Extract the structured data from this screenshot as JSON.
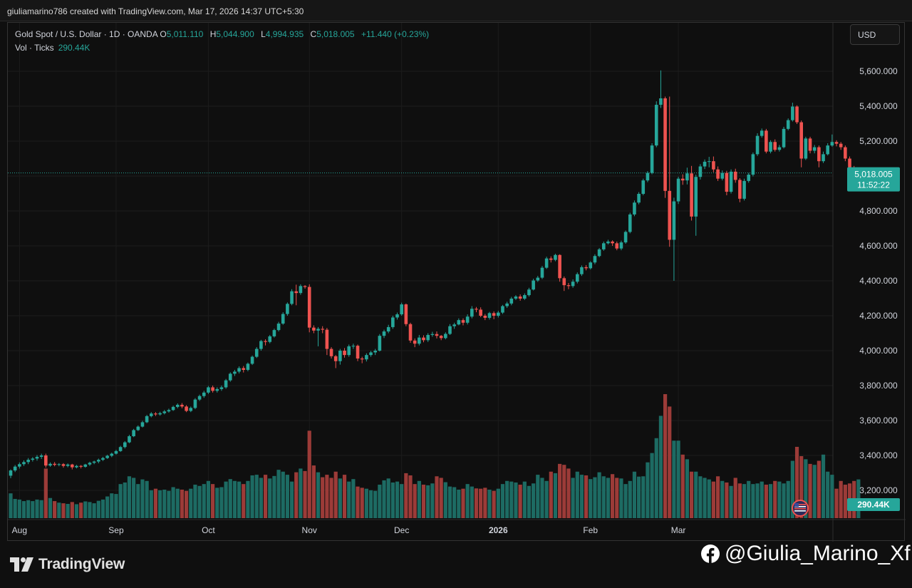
{
  "header": {
    "credit": "giuliamarino786 created with TradingView.com, Mar 17, 2026 14:37 UTC+5:30"
  },
  "legend": {
    "symbol": "Gold Spot / U.S. Dollar · 1D · OANDA",
    "open_key": "O",
    "open": "5,011.110",
    "high_key": "H",
    "high": "5,044.900",
    "low_key": "L",
    "low": "4,994.935",
    "close_key": "C",
    "close": "5,018.005",
    "change": "+11.440 (+0.23%)",
    "volume_label": "Vol · Ticks",
    "volume_value": "290.44K"
  },
  "toolbar": {
    "currency": "USD"
  },
  "price_label": {
    "price": "5,018.005",
    "countdown": "11:52:22"
  },
  "volume_label": {
    "value": "290.44K"
  },
  "footer": {
    "brand": "TradingView",
    "handle": "@Giulia_Marino_Xf"
  },
  "colors": {
    "up": "#26a69a",
    "down": "#ef5350",
    "up_volume": "#1d6b63",
    "down_volume": "#9c3b38",
    "background": "#0f0f0f"
  },
  "icons": [
    "tradingview-logo-icon",
    "us-flag-icon",
    "facebook-icon"
  ],
  "chart_data": {
    "type": "candlestick",
    "title": "Gold Spot / U.S. Dollar · 1D · OANDA",
    "currency": "USD",
    "last_price": 5018.005,
    "y_ticks": [
      3200,
      3400,
      3600,
      3800,
      4000,
      4200,
      4400,
      4600,
      4800,
      5000,
      5200,
      5400,
      5600
    ],
    "y_tick_labels": [
      "3,200.000",
      "3,400.000",
      "3,600.000",
      "3,800.000",
      "4,000.000",
      "4,200.000",
      "4,400.000",
      "4,600.000",
      "4,800.000",
      "5,000.000",
      "5,200.000",
      "5,400.000",
      "5,600.000"
    ],
    "x_labels": [
      {
        "label": "Aug",
        "index": 2
      },
      {
        "label": "Sep",
        "index": 24
      },
      {
        "label": "Oct",
        "index": 45
      },
      {
        "label": "Nov",
        "index": 68
      },
      {
        "label": "Dec",
        "index": 89
      },
      {
        "label": "2026",
        "index": 111
      },
      {
        "label": "Feb",
        "index": 132
      },
      {
        "label": "Mar",
        "index": 152
      }
    ],
    "candles": [
      [
        3284,
        3314,
        3270,
        3320,
        80
      ],
      [
        3314,
        3336,
        3305,
        3345,
        62
      ],
      [
        3336,
        3350,
        3325,
        3360,
        60
      ],
      [
        3350,
        3362,
        3340,
        3372,
        55
      ],
      [
        3362,
        3375,
        3350,
        3385,
        58
      ],
      [
        3375,
        3382,
        3365,
        3390,
        55
      ],
      [
        3382,
        3392,
        3370,
        3402,
        60
      ],
      [
        3392,
        3400,
        3380,
        3410,
        58
      ],
      [
        3400,
        3342,
        3330,
        3410,
        160
      ],
      [
        3342,
        3352,
        3335,
        3360,
        65
      ],
      [
        3352,
        3346,
        3338,
        3362,
        55
      ],
      [
        3346,
        3350,
        3338,
        3356,
        50
      ],
      [
        3350,
        3340,
        3330,
        3356,
        48
      ],
      [
        3340,
        3348,
        3332,
        3354,
        46
      ],
      [
        3348,
        3332,
        3320,
        3352,
        52
      ],
      [
        3332,
        3340,
        3326,
        3346,
        45
      ],
      [
        3340,
        3335,
        3326,
        3345,
        50
      ],
      [
        3335,
        3348,
        3330,
        3352,
        54
      ],
      [
        3348,
        3358,
        3340,
        3364,
        52
      ],
      [
        3358,
        3365,
        3350,
        3370,
        48
      ],
      [
        3365,
        3375,
        3355,
        3382,
        56
      ],
      [
        3375,
        3385,
        3368,
        3392,
        60
      ],
      [
        3385,
        3398,
        3380,
        3404,
        70
      ],
      [
        3398,
        3410,
        3390,
        3416,
        80
      ],
      [
        3410,
        3425,
        3405,
        3432,
        78
      ],
      [
        3425,
        3448,
        3420,
        3455,
        110
      ],
      [
        3448,
        3475,
        3440,
        3482,
        115
      ],
      [
        3475,
        3510,
        3470,
        3518,
        135
      ],
      [
        3510,
        3545,
        3505,
        3552,
        130
      ],
      [
        3545,
        3565,
        3540,
        3572,
        110
      ],
      [
        3565,
        3590,
        3560,
        3598,
        125
      ],
      [
        3590,
        3625,
        3585,
        3632,
        120
      ],
      [
        3625,
        3640,
        3618,
        3648,
        90
      ],
      [
        3640,
        3635,
        3626,
        3648,
        95
      ],
      [
        3635,
        3642,
        3628,
        3650,
        90
      ],
      [
        3642,
        3652,
        3635,
        3660,
        92
      ],
      [
        3652,
        3660,
        3645,
        3668,
        88
      ],
      [
        3660,
        3678,
        3655,
        3685,
        100
      ],
      [
        3678,
        3690,
        3670,
        3698,
        95
      ],
      [
        3690,
        3680,
        3670,
        3700,
        92
      ],
      [
        3680,
        3655,
        3648,
        3688,
        88
      ],
      [
        3655,
        3672,
        3648,
        3680,
        95
      ],
      [
        3672,
        3720,
        3665,
        3728,
        108
      ],
      [
        3720,
        3740,
        3712,
        3748,
        104
      ],
      [
        3740,
        3760,
        3730,
        3770,
        110
      ],
      [
        3760,
        3790,
        3752,
        3798,
        120
      ],
      [
        3790,
        3770,
        3760,
        3800,
        110
      ],
      [
        3770,
        3780,
        3760,
        3790,
        98
      ],
      [
        3780,
        3790,
        3770,
        3800,
        100
      ],
      [
        3790,
        3830,
        3782,
        3838,
        118
      ],
      [
        3830,
        3868,
        3822,
        3876,
        126
      ],
      [
        3868,
        3880,
        3855,
        3890,
        120
      ],
      [
        3880,
        3900,
        3870,
        3910,
        118
      ],
      [
        3900,
        3890,
        3875,
        3912,
        110
      ],
      [
        3890,
        3925,
        3882,
        3932,
        120
      ],
      [
        3925,
        3965,
        3918,
        3972,
        138
      ],
      [
        3965,
        4010,
        3958,
        4020,
        140
      ],
      [
        4010,
        4055,
        4000,
        4062,
        130
      ],
      [
        4055,
        4050,
        4030,
        4065,
        140
      ],
      [
        4050,
        4082,
        4042,
        4090,
        128
      ],
      [
        4082,
        4118,
        4075,
        4126,
        136
      ],
      [
        4118,
        4155,
        4110,
        4165,
        156
      ],
      [
        4155,
        4210,
        4148,
        4220,
        150
      ],
      [
        4210,
        4268,
        4200,
        4276,
        140
      ],
      [
        4268,
        4340,
        4260,
        4352,
        118
      ],
      [
        4340,
        4330,
        4260,
        4378,
        148
      ],
      [
        4330,
        4370,
        4320,
        4380,
        160
      ],
      [
        4370,
        4365,
        4355,
        4375,
        152
      ],
      [
        4365,
        4132,
        4105,
        4380,
        282
      ],
      [
        4132,
        4115,
        4100,
        4145,
        170
      ],
      [
        4115,
        4125,
        4025,
        4135,
        148
      ],
      [
        4125,
        4120,
        4100,
        4140,
        132
      ],
      [
        4120,
        4010,
        3975,
        4130,
        140
      ],
      [
        4010,
        3968,
        3955,
        4020,
        130
      ],
      [
        3968,
        3940,
        3900,
        3975,
        150
      ],
      [
        3940,
        4000,
        3920,
        4010,
        128
      ],
      [
        4000,
        3975,
        3960,
        4015,
        140
      ],
      [
        3975,
        4025,
        3965,
        4035,
        118
      ],
      [
        4025,
        4028,
        4010,
        4040,
        126
      ],
      [
        4028,
        3955,
        3940,
        4035,
        102
      ],
      [
        3955,
        3950,
        3928,
        3965,
        98
      ],
      [
        3950,
        3975,
        3938,
        3985,
        95
      ],
      [
        3975,
        3990,
        3965,
        3998,
        90
      ],
      [
        3990,
        4000,
        3975,
        4010,
        88
      ],
      [
        4000,
        4085,
        3995,
        4095,
        108
      ],
      [
        4085,
        4110,
        4072,
        4120,
        122
      ],
      [
        4110,
        4135,
        4100,
        4148,
        128
      ],
      [
        4135,
        4190,
        4125,
        4200,
        115
      ],
      [
        4190,
        4208,
        4178,
        4218,
        118
      ],
      [
        4208,
        4265,
        4200,
        4275,
        110
      ],
      [
        4265,
        4152,
        4140,
        4270,
        145
      ],
      [
        4152,
        4058,
        4045,
        4160,
        138
      ],
      [
        4058,
        4040,
        4020,
        4070,
        110
      ],
      [
        4040,
        4075,
        4030,
        4090,
        120
      ],
      [
        4075,
        4060,
        4048,
        4088,
        108
      ],
      [
        4060,
        4090,
        4050,
        4100,
        106
      ],
      [
        4090,
        4095,
        4080,
        4108,
        112
      ],
      [
        4095,
        4085,
        4070,
        4110,
        135
      ],
      [
        4085,
        4072,
        4060,
        4090,
        130
      ],
      [
        4072,
        4096,
        4065,
        4105,
        116
      ],
      [
        4096,
        4140,
        4090,
        4152,
        102
      ],
      [
        4140,
        4150,
        4125,
        4160,
        100
      ],
      [
        4150,
        4175,
        4145,
        4185,
        92
      ],
      [
        4175,
        4160,
        4145,
        4185,
        95
      ],
      [
        4160,
        4195,
        4150,
        4208,
        110
      ],
      [
        4195,
        4240,
        4185,
        4255,
        102
      ],
      [
        4240,
        4235,
        4220,
        4250,
        96
      ],
      [
        4235,
        4200,
        4192,
        4248,
        95
      ],
      [
        4200,
        4188,
        4175,
        4210,
        98
      ],
      [
        4188,
        4215,
        4178,
        4222,
        92
      ],
      [
        4215,
        4200,
        4180,
        4225,
        88
      ],
      [
        4200,
        4218,
        4190,
        4228,
        95
      ],
      [
        4218,
        4255,
        4210,
        4262,
        110
      ],
      [
        4255,
        4270,
        4245,
        4280,
        120
      ],
      [
        4270,
        4298,
        4260,
        4308,
        118
      ],
      [
        4298,
        4310,
        4290,
        4318,
        115
      ],
      [
        4310,
        4298,
        4286,
        4322,
        108
      ],
      [
        4298,
        4318,
        4290,
        4328,
        118
      ],
      [
        4318,
        4350,
        4310,
        4360,
        104
      ],
      [
        4350,
        4402,
        4345,
        4412,
        112
      ],
      [
        4402,
        4418,
        4394,
        4428,
        140
      ],
      [
        4418,
        4475,
        4410,
        4485,
        130
      ],
      [
        4475,
        4528,
        4468,
        4538,
        120
      ],
      [
        4528,
        4520,
        4505,
        4540,
        150
      ],
      [
        4520,
        4548,
        4512,
        4555,
        145
      ],
      [
        4548,
        4415,
        4395,
        4552,
        175
      ],
      [
        4415,
        4375,
        4342,
        4425,
        172
      ],
      [
        4375,
        4370,
        4352,
        4388,
        160
      ],
      [
        4370,
        4395,
        4360,
        4408,
        130
      ],
      [
        4395,
        4438,
        4385,
        4448,
        150
      ],
      [
        4438,
        4478,
        4428,
        4488,
        140
      ],
      [
        4478,
        4472,
        4460,
        4490,
        138
      ],
      [
        4472,
        4505,
        4465,
        4512,
        126
      ],
      [
        4505,
        4542,
        4495,
        4552,
        132
      ],
      [
        4542,
        4580,
        4535,
        4588,
        148
      ],
      [
        4580,
        4615,
        4572,
        4625,
        135
      ],
      [
        4615,
        4625,
        4608,
        4635,
        130
      ],
      [
        4625,
        4615,
        4600,
        4632,
        142
      ],
      [
        4615,
        4585,
        4575,
        4625,
        130
      ],
      [
        4585,
        4620,
        4575,
        4630,
        128
      ],
      [
        4620,
        4680,
        4612,
        4688,
        110
      ],
      [
        4680,
        4780,
        4672,
        4790,
        120
      ],
      [
        4780,
        4848,
        4770,
        4860,
        150
      ],
      [
        4848,
        4898,
        4838,
        4908,
        134
      ],
      [
        4898,
        4975,
        4890,
        4985,
        135
      ],
      [
        4975,
        5018,
        4965,
        5028,
        180
      ],
      [
        5018,
        5175,
        5010,
        5188,
        210
      ],
      [
        5175,
        5408,
        5165,
        5428,
        258
      ],
      [
        5408,
        5445,
        5390,
        5605,
        330
      ],
      [
        5445,
        4915,
        4875,
        5455,
        400
      ],
      [
        4915,
        4635,
        4595,
        5455,
        360
      ],
      [
        4635,
        4855,
        4400,
        4876,
        250
      ],
      [
        4855,
        4985,
        4840,
        4996,
        250
      ],
      [
        4985,
        4975,
        4950,
        5010,
        205
      ],
      [
        4975,
        5015,
        4952,
        5048,
        190
      ],
      [
        5015,
        4768,
        4745,
        5058,
        150
      ],
      [
        4768,
        4995,
        4658,
        5008,
        150
      ],
      [
        4995,
        5055,
        4980,
        5068,
        135
      ],
      [
        5055,
        5082,
        5040,
        5095,
        130
      ],
      [
        5082,
        5085,
        5050,
        5110,
        125
      ],
      [
        5085,
        5038,
        5022,
        5112,
        118
      ],
      [
        5038,
        4985,
        4972,
        5055,
        135
      ],
      [
        4985,
        5018,
        4975,
        5032,
        120
      ],
      [
        5018,
        4910,
        4890,
        5030,
        115
      ],
      [
        4910,
        5025,
        4900,
        5038,
        104
      ],
      [
        5025,
        4978,
        4962,
        5042,
        130
      ],
      [
        4978,
        4870,
        4850,
        4988,
        112
      ],
      [
        4870,
        4972,
        4860,
        4985,
        110
      ],
      [
        4972,
        5008,
        4962,
        5018,
        120
      ],
      [
        5008,
        5125,
        4998,
        5135,
        110
      ],
      [
        5125,
        5230,
        5115,
        5245,
        112
      ],
      [
        5230,
        5260,
        5220,
        5272,
        118
      ],
      [
        5260,
        5140,
        5130,
        5270,
        108
      ],
      [
        5140,
        5195,
        5130,
        5205,
        110
      ],
      [
        5195,
        5150,
        5140,
        5210,
        120
      ],
      [
        5150,
        5165,
        5140,
        5178,
        118
      ],
      [
        5165,
        5270,
        5158,
        5282,
        112
      ],
      [
        5270,
        5320,
        5262,
        5330,
        120
      ],
      [
        5320,
        5398,
        5312,
        5420,
        185
      ],
      [
        5398,
        5308,
        5298,
        5405,
        230
      ],
      [
        5308,
        5100,
        5050,
        5318,
        200
      ],
      [
        5100,
        5215,
        5092,
        5225,
        190
      ],
      [
        5215,
        5145,
        5130,
        5225,
        175
      ],
      [
        5145,
        5165,
        5130,
        5178,
        172
      ],
      [
        5165,
        5085,
        5050,
        5175,
        185
      ],
      [
        5085,
        5125,
        5075,
        5140,
        205
      ],
      [
        5125,
        5175,
        5118,
        5188,
        150
      ],
      [
        5175,
        5195,
        5168,
        5238,
        140
      ],
      [
        5195,
        5185,
        5170,
        5205,
        95
      ],
      [
        5185,
        5165,
        5150,
        5195,
        120
      ],
      [
        5165,
        5100,
        5085,
        5175,
        108
      ],
      [
        5100,
        5048,
        5035,
        5112,
        112
      ],
      [
        5048,
        5008,
        4990,
        5058,
        120
      ],
      [
        5008,
        5018,
        4994,
        5044,
        125
      ]
    ]
  }
}
